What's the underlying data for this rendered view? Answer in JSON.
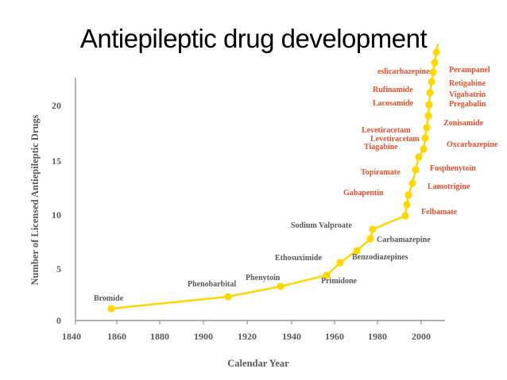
{
  "slide": {
    "title": "Antiepileptic drug development"
  },
  "chart_data": {
    "type": "line",
    "title": "Antiepileptic drug development",
    "xlabel": "Calendar Year",
    "ylabel": "Number of Licensed Antiepileptic Drugs",
    "xlim": [
      1840,
      2010
    ],
    "ylim": [
      0,
      23
    ],
    "x_ticks": [
      "1840",
      "1860",
      "1880",
      "1900",
      "1920",
      "1940",
      "1960",
      "1980",
      "2000"
    ],
    "y_ticks": [
      "0",
      "5",
      "10",
      "15",
      "20"
    ],
    "grid": false,
    "line_color": "#ffd700",
    "points": [
      {
        "x": 1857,
        "y": 1,
        "label": "Bromide",
        "color": "#595959"
      },
      {
        "x": 1912,
        "y": 2,
        "label": "Phenobarbital",
        "color": "#595959"
      },
      {
        "x": 1938,
        "y": 3,
        "label": "Phenytoin",
        "color": "#595959"
      },
      {
        "x": 1958,
        "y": 4,
        "label": "Primidone",
        "color": "#595959"
      },
      {
        "x": 1965,
        "y": 5,
        "label": "Ethosuximide",
        "color": "#595959"
      },
      {
        "x": 1972,
        "y": 6,
        "label": "Benzodiazepines",
        "color": "#595959"
      },
      {
        "x": 1978,
        "y": 7,
        "label": "Carbamazepine",
        "color": "#595959"
      },
      {
        "x": 1978,
        "y": 8,
        "label": "Sodium Valproate",
        "color": "#595959"
      },
      {
        "x": 1993,
        "y": 9,
        "label": "Felbamate",
        "color": "#e8502b"
      },
      {
        "x": 1994,
        "y": 10,
        "label": "Gabapentin",
        "color": "#e8502b"
      },
      {
        "x": 1995,
        "y": 11,
        "label": "Lamotrigine",
        "color": "#e8502b"
      },
      {
        "x": 1996,
        "y": 12,
        "label": "Topiramate",
        "color": "#e8502b"
      },
      {
        "x": 1997,
        "y": 13,
        "label": "Fosphenytoin",
        "color": "#e8502b"
      },
      {
        "x": 1998,
        "y": 14,
        "label": "Tiagabine",
        "color": "#e8502b"
      },
      {
        "x": 1999,
        "y": 15,
        "label": "Oxcarbazepine",
        "color": "#e8502b"
      },
      {
        "x": 2000,
        "y": 16,
        "label": "Levetiracetam",
        "color": "#e8502b"
      },
      {
        "x": 2001,
        "y": 17,
        "label": "Levetiracetam",
        "color": "#e8502b"
      },
      {
        "x": 2002,
        "y": 18,
        "label": "Zonisamide",
        "color": "#e8502b"
      },
      {
        "x": 2004,
        "y": 19,
        "label": "Pregabalin",
        "color": "#e8502b"
      },
      {
        "x": 2005,
        "y": 20,
        "label": "Lacosamide",
        "color": "#e8502b"
      },
      {
        "x": 2006,
        "y": 21,
        "label": "Vigabatrin",
        "color": "#e8502b"
      },
      {
        "x": 2007,
        "y": 22,
        "label": "Rufinamide",
        "color": "#e8502b"
      },
      {
        "x": 2008,
        "y": 23,
        "label": "Retigabine",
        "color": "#e8502b"
      },
      {
        "x": 2009,
        "y": 24,
        "label": "eslicarbazepine",
        "color": "#e8502b"
      },
      {
        "x": 2010,
        "y": 25,
        "label": "Perampanel",
        "color": "#e8502b"
      }
    ]
  }
}
